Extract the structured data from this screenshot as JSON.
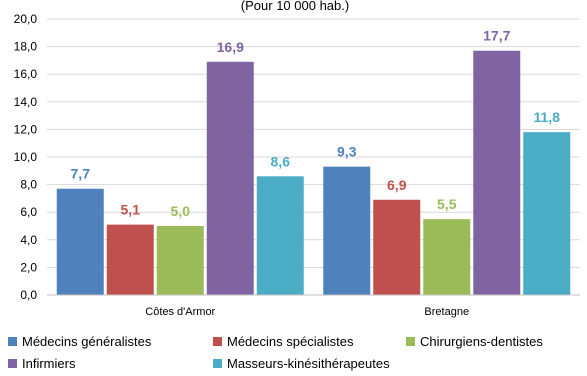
{
  "chart_data": {
    "type": "bar",
    "subtitle": "(Pour 10 000 hab.)",
    "categories": [
      "Côtes d'Armor",
      "Bretagne"
    ],
    "ylim": [
      0,
      20
    ],
    "yticks": [
      "0,0",
      "2,0",
      "4,0",
      "6,0",
      "8,0",
      "10,0",
      "12,0",
      "14,0",
      "16,0",
      "18,0",
      "20,0"
    ],
    "grid": true,
    "legend_position": "bottom",
    "series": [
      {
        "name": "Médecins généralistes",
        "color": "#4F81BD",
        "values": [
          7.7,
          9.3
        ],
        "labels": [
          "7,7",
          "9,3"
        ]
      },
      {
        "name": "Médecins spécialistes",
        "color": "#C0504D",
        "values": [
          5.1,
          6.9
        ],
        "labels": [
          "5,1",
          "6,9"
        ]
      },
      {
        "name": "Chirurgiens-dentistes",
        "color": "#9BBB59",
        "values": [
          5.0,
          5.5
        ],
        "labels": [
          "5,0",
          "5,5"
        ]
      },
      {
        "name": "Infirmiers",
        "color": "#8064A2",
        "values": [
          16.9,
          17.7
        ],
        "labels": [
          "16,9",
          "17,7"
        ]
      },
      {
        "name": "Masseurs-kinésithérapeutes",
        "color": "#4BACC6",
        "values": [
          8.6,
          11.8
        ],
        "labels": [
          "8,6",
          "11,8"
        ]
      }
    ]
  }
}
